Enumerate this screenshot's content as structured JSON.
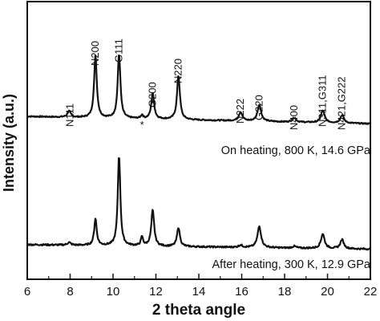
{
  "chart_data": {
    "type": "line",
    "xlabel": "2 theta angle",
    "ylabel": "Intensity (a.u.)",
    "xlim": [
      6,
      22
    ],
    "xticks": [
      "6",
      "8",
      "10",
      "12",
      "14",
      "16",
      "18",
      "20",
      "22"
    ],
    "grid": false,
    "series": [
      {
        "name": "On heating, 800 K, 14.6 GPa",
        "baseline_start": 0.77,
        "baseline_end": 0.355,
        "peaks": [
          {
            "x": 7.95,
            "height": 0.35,
            "width": 0.09
          },
          {
            "x": 9.18,
            "height": 3.55,
            "width": 0.075
          },
          {
            "x": 10.28,
            "height": 3.65,
            "width": 0.075
          },
          {
            "x": 11.35,
            "height": 0.2,
            "width": 0.06
          },
          {
            "x": 11.85,
            "height": 1.45,
            "width": 0.08
          },
          {
            "x": 13.05,
            "height": 2.5,
            "width": 0.08
          },
          {
            "x": 15.95,
            "height": 0.5,
            "width": 0.1
          },
          {
            "x": 16.82,
            "height": 0.95,
            "width": 0.1
          },
          {
            "x": 18.45,
            "height": 0.25,
            "width": 0.1
          },
          {
            "x": 19.78,
            "height": 0.7,
            "width": 0.1
          },
          {
            "x": 20.68,
            "height": 0.45,
            "width": 0.1
          }
        ]
      },
      {
        "name": "After heating, 300 K, 12.9 GPa",
        "baseline_start": 0.4,
        "baseline_end": 0.2,
        "peaks": [
          {
            "x": 7.95,
            "height": 0.12,
            "width": 0.09
          },
          {
            "x": 9.18,
            "height": 1.2,
            "width": 0.07
          },
          {
            "x": 10.28,
            "height": 4.05,
            "width": 0.07
          },
          {
            "x": 11.35,
            "height": 0.4,
            "width": 0.06
          },
          {
            "x": 11.85,
            "height": 1.6,
            "width": 0.08
          },
          {
            "x": 13.05,
            "height": 0.85,
            "width": 0.08
          },
          {
            "x": 15.95,
            "height": 0.1,
            "width": 0.1
          },
          {
            "x": 16.82,
            "height": 0.95,
            "width": 0.1
          },
          {
            "x": 18.45,
            "height": 0.08,
            "width": 0.1
          },
          {
            "x": 19.78,
            "height": 0.65,
            "width": 0.1
          },
          {
            "x": 20.68,
            "height": 0.4,
            "width": 0.1
          }
        ]
      }
    ],
    "annotations": [
      {
        "text": "N111",
        "x": 8.0
      },
      {
        "text": "N200",
        "x": 9.18
      },
      {
        "text": "G111",
        "x": 10.28
      },
      {
        "text": "*",
        "x": 11.35
      },
      {
        "text": "G200",
        "x": 11.85
      },
      {
        "text": "N220",
        "x": 13.05
      },
      {
        "text": "N222",
        "x": 15.95
      },
      {
        "text": "G220",
        "x": 16.82
      },
      {
        "text": "N400",
        "x": 18.45
      },
      {
        "text": "N311,G311",
        "x": 19.78
      },
      {
        "text": "N421,G222",
        "x": 20.68
      }
    ]
  }
}
